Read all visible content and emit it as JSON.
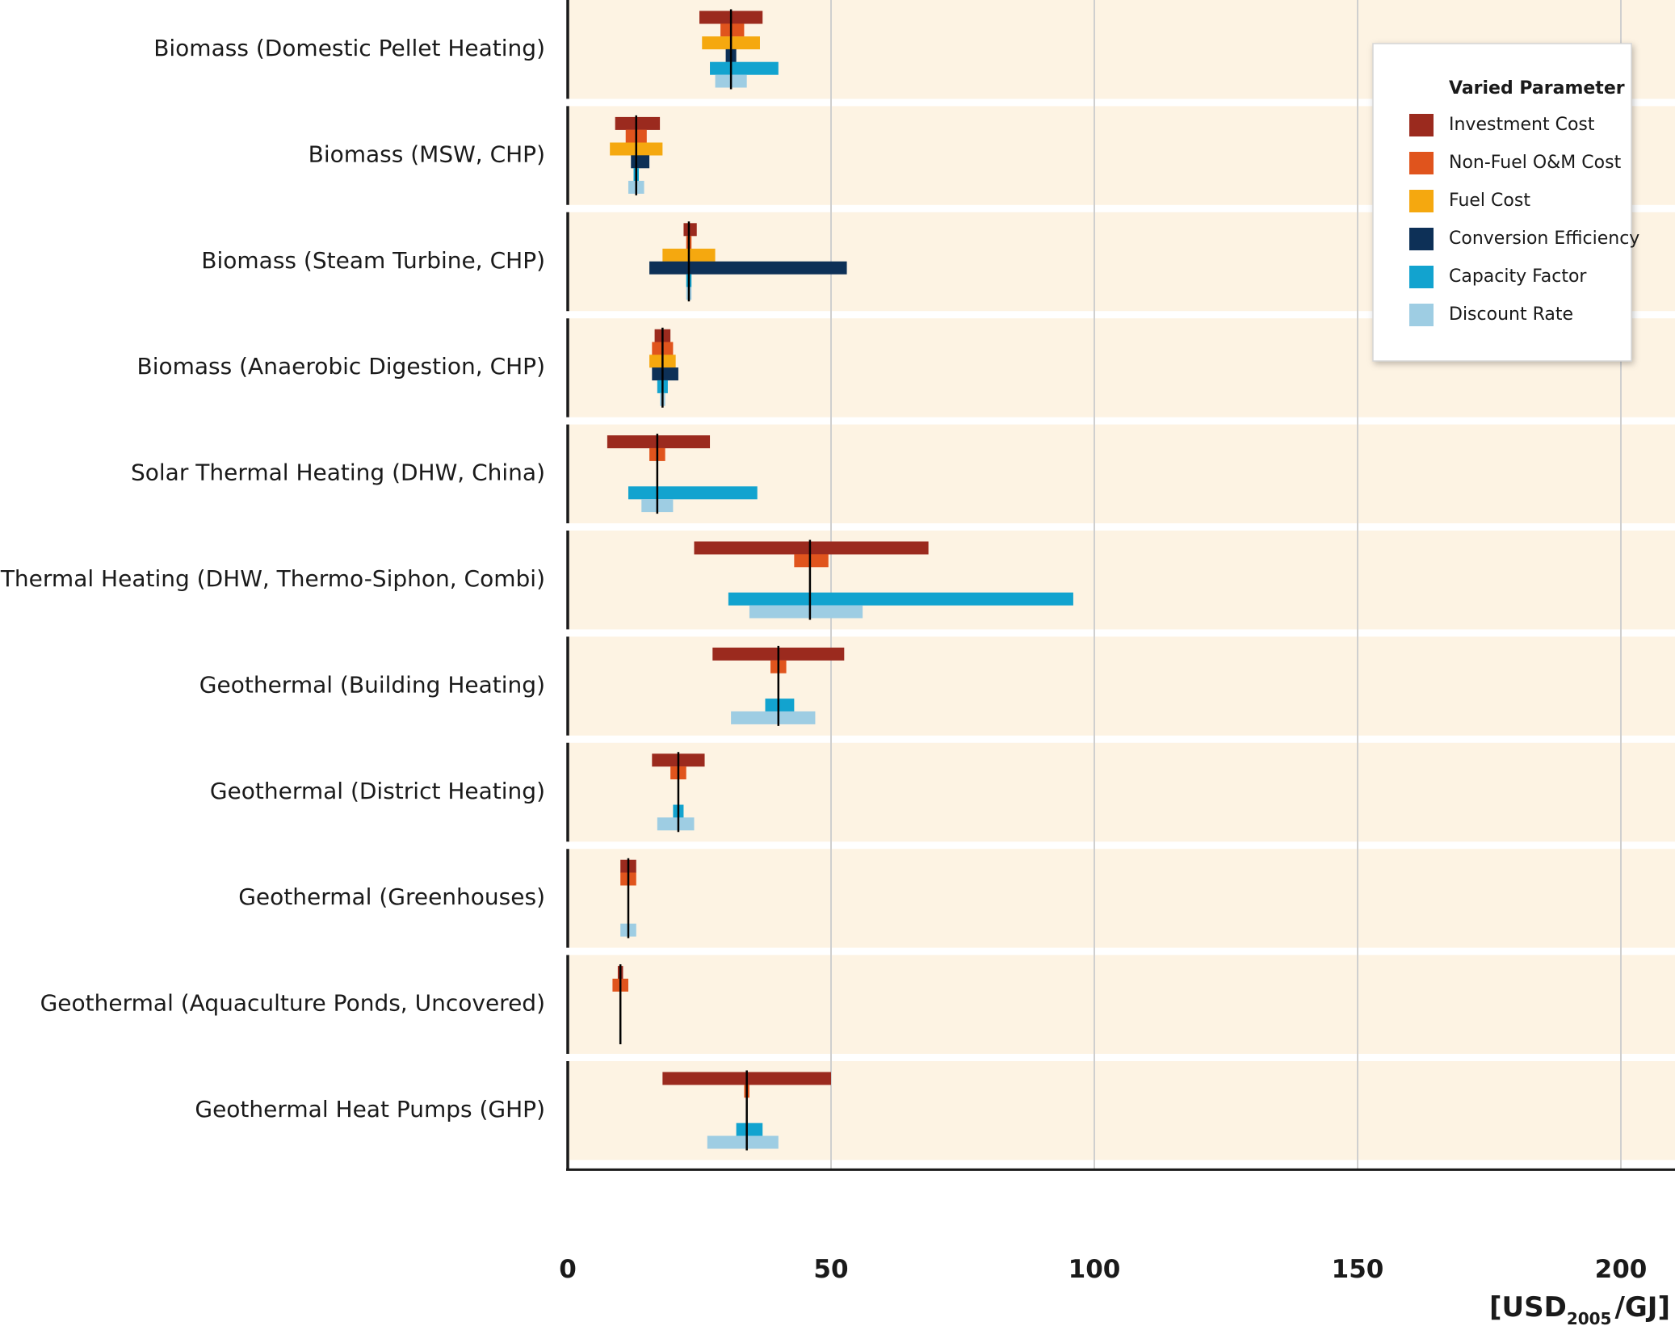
{
  "chart_data": {
    "type": "bar",
    "subtype": "tornado-sensitivity",
    "orientation": "horizontal",
    "xlim": [
      0,
      210
    ],
    "xticks": [
      0,
      50,
      100,
      150,
      200
    ],
    "xunit": {
      "main": "[USD",
      "sub": "2005",
      "end": "/GJ]"
    },
    "grid": true,
    "legend": {
      "title": "Varied Parameter",
      "placement": "top-right",
      "entries": [
        {
          "key": "investment",
          "label": "Investment Cost",
          "color": "#9b2a1e"
        },
        {
          "key": "om",
          "label": "Non-Fuel O&M Cost",
          "color": "#e0541d"
        },
        {
          "key": "fuel",
          "label": "Fuel Cost",
          "color": "#f5a80f"
        },
        {
          "key": "efficiency",
          "label": "Conversion Efficiency",
          "color": "#0d3057"
        },
        {
          "key": "capacity",
          "label": "Capacity Factor",
          "color": "#12a3cf"
        },
        {
          "key": "discount",
          "label": "Discount Rate",
          "color": "#9ecde3"
        }
      ]
    },
    "series_order": [
      "investment",
      "om",
      "fuel",
      "efficiency",
      "capacity",
      "discount"
    ],
    "categories": [
      {
        "label": "Biomass (Domestic Pellet Heating)",
        "median": 31,
        "ranges": {
          "investment": [
            25,
            37
          ],
          "om": [
            29,
            33.5
          ],
          "fuel": [
            25.5,
            36.5
          ],
          "efficiency": [
            30,
            32
          ],
          "capacity": [
            27,
            40
          ],
          "discount": [
            28,
            34
          ]
        }
      },
      {
        "label": "Biomass (MSW, CHP)",
        "median": 13,
        "ranges": {
          "investment": [
            9,
            17.5
          ],
          "om": [
            11,
            15
          ],
          "fuel": [
            8,
            18
          ],
          "efficiency": [
            12,
            15.5
          ],
          "capacity": [
            12.5,
            13.5
          ],
          "discount": [
            11.5,
            14.5
          ]
        }
      },
      {
        "label": "Biomass (Steam Turbine, CHP)",
        "median": 23,
        "ranges": {
          "investment": [
            22,
            24.5
          ],
          "om": [
            22.5,
            23.5
          ],
          "fuel": [
            18,
            28
          ],
          "efficiency": [
            15.5,
            53
          ],
          "capacity": [
            22.5,
            23.5
          ],
          "discount": [
            22.5,
            23.5
          ]
        }
      },
      {
        "label": "Biomass (Anaerobic Digestion, CHP)",
        "median": 18,
        "ranges": {
          "investment": [
            16.5,
            19.5
          ],
          "om": [
            16,
            20
          ],
          "fuel": [
            15.5,
            20.5
          ],
          "efficiency": [
            16,
            21
          ],
          "capacity": [
            17,
            19
          ],
          "discount": [
            17.5,
            18.5
          ]
        }
      },
      {
        "label": "Solar Thermal Heating (DHW, China)",
        "median": 17,
        "ranges": {
          "investment": [
            7.5,
            27
          ],
          "om": [
            15.5,
            18.5
          ],
          "capacity": [
            11.5,
            36
          ],
          "discount": [
            14,
            20
          ]
        }
      },
      {
        "label": "Solar Thermal Heating (DHW, Thermo-Siphon, Combi)",
        "median": 46,
        "ranges": {
          "investment": [
            24,
            68.5
          ],
          "om": [
            43,
            49.5
          ],
          "capacity": [
            30.5,
            96
          ],
          "discount": [
            34.5,
            56
          ]
        }
      },
      {
        "label": "Geothermal (Building Heating)",
        "median": 40,
        "ranges": {
          "investment": [
            27.5,
            52.5
          ],
          "om": [
            38.5,
            41.5
          ],
          "capacity": [
            37.5,
            43
          ],
          "discount": [
            31,
            47
          ]
        }
      },
      {
        "label": "Geothermal (District Heating)",
        "median": 21,
        "ranges": {
          "investment": [
            16,
            26
          ],
          "om": [
            19.5,
            22.5
          ],
          "capacity": [
            20,
            22
          ],
          "discount": [
            17,
            24
          ]
        }
      },
      {
        "label": "Geothermal (Greenhouses)",
        "median": 11.5,
        "ranges": {
          "investment": [
            10,
            13
          ],
          "om": [
            10,
            13
          ],
          "discount": [
            10,
            13
          ]
        }
      },
      {
        "label": "Geothermal (Aquaculture Ponds, Uncovered)",
        "median": 10,
        "ranges": {
          "investment": [
            9.5,
            10.5
          ],
          "om": [
            8.5,
            11.5
          ],
          "discount": [
            9.8,
            10.2
          ]
        }
      },
      {
        "label": "Geothermal Heat Pumps (GHP)",
        "median": 34,
        "ranges": {
          "investment": [
            18,
            50
          ],
          "om": [
            33.5,
            34.5
          ],
          "capacity": [
            32,
            37
          ],
          "discount": [
            26.5,
            40
          ]
        }
      }
    ]
  },
  "colors": {
    "panel_bg": "#fdf3e3",
    "grid": "#cfcfcf",
    "axis": "#1a1a1a",
    "median_line": "#000000"
  }
}
